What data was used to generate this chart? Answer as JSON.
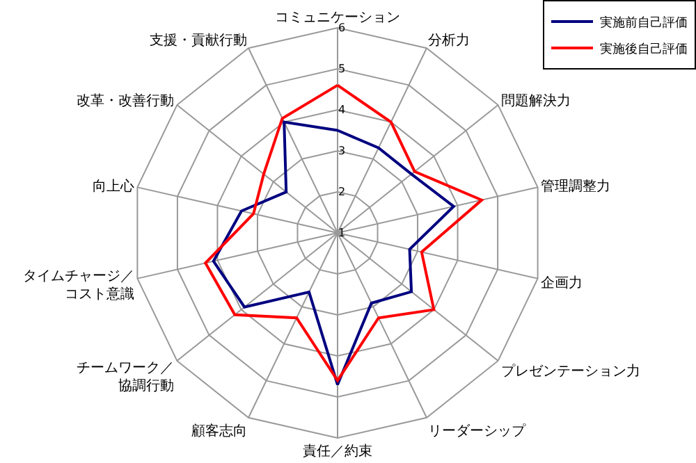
{
  "chart_data": {
    "type": "radar",
    "categories": [
      "コミュニケーション",
      "分析力",
      "問題解決力",
      "管理調整力",
      "企画力",
      "プレゼンテーション力",
      "リーダーシップ",
      "責任／約束",
      "顧客志向",
      "チームワーク／協調行動",
      "タイムチャージ／コスト意識",
      "向上心",
      "改革・改善行動",
      "支援・貢献行動"
    ],
    "series": [
      {
        "name": "実施前自己評価",
        "color": "#000080",
        "values": [
          3.5,
          3.3,
          3.3,
          3.9,
          2.8,
          3.3,
          2.9,
          4.7,
          2.6,
          3.9,
          4.1,
          3.4,
          2.6,
          4.0
        ]
      },
      {
        "name": "実施後自己評価",
        "color": "#ff0000",
        "values": [
          4.6,
          4.0,
          3.4,
          4.6,
          3.1,
          4.0,
          3.3,
          4.6,
          3.3,
          4.2,
          4.3,
          3.1,
          3.3,
          4.1
        ]
      }
    ],
    "ylim": [
      1,
      6
    ],
    "yticks": [
      1,
      2,
      3,
      4,
      5,
      6
    ],
    "grid": true,
    "legend": "top right",
    "marker": "none",
    "line_style": "solid"
  }
}
